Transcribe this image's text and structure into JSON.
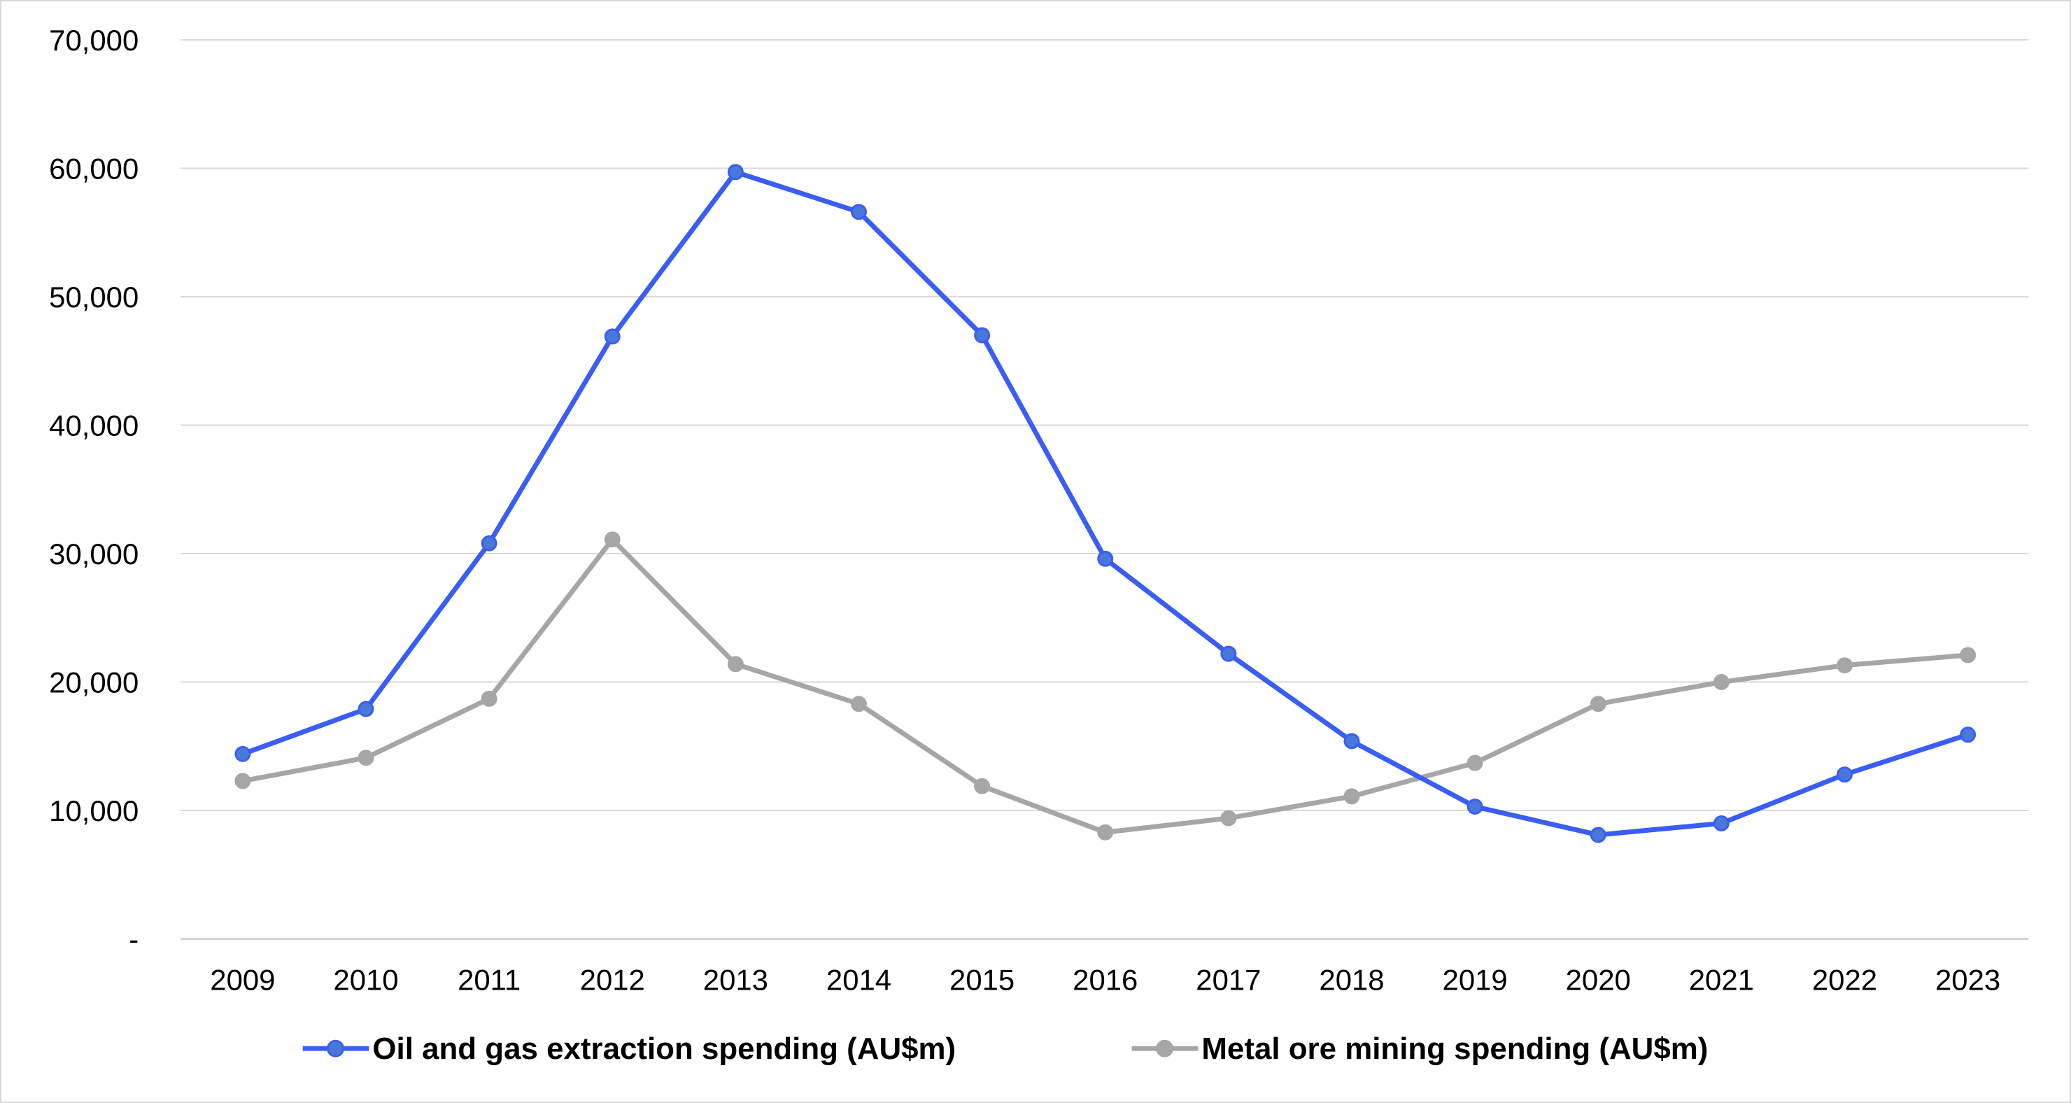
{
  "chart_data": {
    "type": "line",
    "title": "",
    "xlabel": "",
    "ylabel": "",
    "ylim": [
      0,
      70000
    ],
    "yticks": [
      0,
      10000,
      20000,
      30000,
      40000,
      50000,
      60000,
      70000
    ],
    "ytick_labels": [
      "-",
      "10,000",
      "20,000",
      "30,000",
      "40,000",
      "50,000",
      "60,000",
      "70,000"
    ],
    "grid": "horizontal",
    "legend_placement": "bottom",
    "categories": [
      "2009",
      "2010",
      "2011",
      "2012",
      "2013",
      "2014",
      "2015",
      "2016",
      "2017",
      "2018",
      "2019",
      "2020",
      "2021",
      "2022",
      "2023"
    ],
    "series": [
      {
        "name": "Oil and gas extraction spending (AU$m)",
        "color": "#3a5ef5",
        "marker_color": "#4a78d8",
        "values": [
          14400,
          17900,
          30800,
          46900,
          59700,
          56600,
          47000,
          29600,
          22200,
          15400,
          10300,
          8100,
          9000,
          12800,
          15900
        ]
      },
      {
        "name": "Metal ore mining spending (AU$m)",
        "color": "#a6a6a6",
        "marker_color": "#a6a6a6",
        "values": [
          12300,
          14100,
          18700,
          31100,
          21400,
          18300,
          11900,
          8300,
          9400,
          11100,
          13700,
          18300,
          20000,
          21300,
          22100
        ]
      }
    ]
  }
}
